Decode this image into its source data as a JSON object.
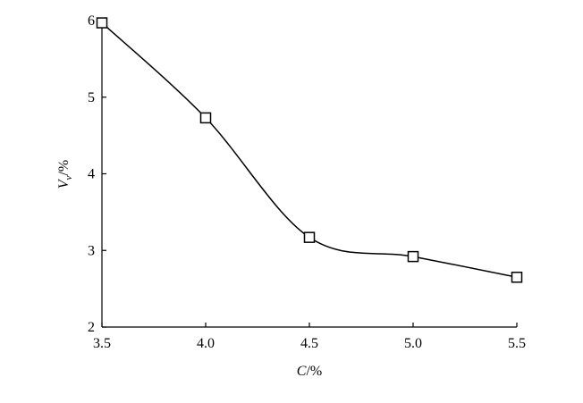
{
  "chart_data": {
    "type": "line",
    "xlabel": [
      "C",
      "/%"
    ],
    "ylabel": [
      "V",
      "v",
      "/%"
    ],
    "x": [
      3.5,
      4.0,
      4.5,
      5.0,
      5.5
    ],
    "values": [
      5.97,
      4.73,
      3.17,
      2.92,
      2.65
    ],
    "color": "#000000",
    "marker": "square",
    "xlim": [
      3.5,
      5.5
    ],
    "xticks": [
      3.5,
      {
        "value": 4.0,
        "label": "4.0"
      },
      4.5,
      {
        "value": 5.0,
        "label": "5.0"
      },
      5.5
    ],
    "ylim": [
      2,
      6
    ],
    "yticks": [
      2,
      3,
      4,
      5,
      6
    ]
  }
}
